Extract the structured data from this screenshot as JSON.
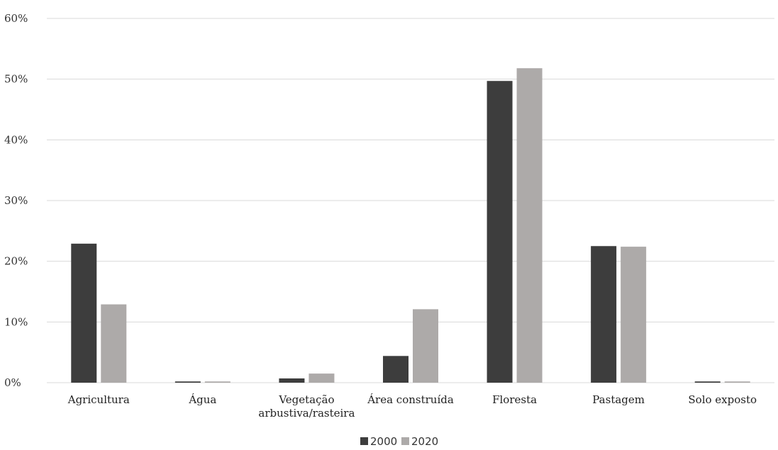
{
  "chart_data": {
    "type": "bar",
    "categories": [
      [
        "Agricultura"
      ],
      [
        "Água"
      ],
      [
        "Vegetação",
        "arbustiva/rasteira"
      ],
      [
        "Área construída"
      ],
      [
        "Floresta"
      ],
      [
        "Pastagem"
      ],
      [
        "Solo exposto"
      ]
    ],
    "series": [
      {
        "name": "2000",
        "color": "#3d3d3d",
        "values": [
          22.9,
          0.2,
          0.7,
          4.4,
          49.7,
          22.5,
          0.2
        ]
      },
      {
        "name": "2020",
        "color": "#adaaa9",
        "values": [
          12.9,
          0.2,
          1.5,
          12.1,
          51.8,
          22.4,
          0.2
        ]
      }
    ],
    "ylim": [
      0,
      60
    ],
    "yticks": [
      0,
      10,
      20,
      30,
      40,
      50,
      60
    ],
    "ytick_labels": [
      "0%",
      "10%",
      "20%",
      "30%",
      "40%",
      "50%",
      "60%"
    ],
    "grid": true,
    "legend_position": "bottom-center",
    "title": "",
    "xlabel": "",
    "ylabel": ""
  }
}
